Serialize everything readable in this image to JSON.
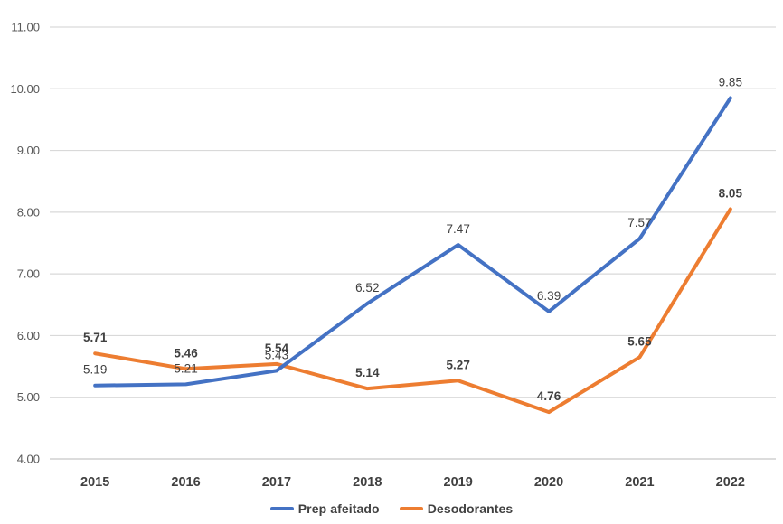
{
  "chart_data": {
    "type": "line",
    "title": "",
    "categories": [
      "2015",
      "2016",
      "2017",
      "2018",
      "2019",
      "2020",
      "2021",
      "2022"
    ],
    "series": [
      {
        "name": "Prep afeitado",
        "color": "#4472C4",
        "values": [
          5.19,
          5.21,
          5.43,
          6.52,
          7.47,
          6.39,
          7.57,
          9.85
        ],
        "labels_bold": false
      },
      {
        "name": "Desodorantes",
        "color": "#ED7D31",
        "values": [
          5.71,
          5.46,
          5.54,
          5.14,
          5.27,
          4.76,
          5.65,
          8.05
        ],
        "labels_bold": true
      }
    ],
    "data_labels": {
      "prep_afeitado": [
        "5.19",
        "5.21",
        "5.43",
        "6.52",
        "7.47",
        "6.39",
        "7.57",
        "9.85"
      ],
      "desodorantes": [
        "5.71",
        "5.46",
        "5.54",
        "5.14",
        "5.27",
        "4.76",
        "5.65",
        "8.05"
      ]
    },
    "xlabel": "",
    "ylabel": "",
    "y_axis": {
      "min": 4,
      "max": 11,
      "step": 1,
      "tick_labels": [
        "4.00",
        "5.00",
        "6.00",
        "7.00",
        "8.00",
        "9.00",
        "10.00",
        "11.00"
      ]
    },
    "grid": true,
    "legend_position": "bottom",
    "colors": {
      "gridline": "#D9D9D9",
      "axis_line": "#C6C6C6",
      "y_tick_text": "#595959",
      "x_tick_text": "#404040",
      "data_label_text": "#404040",
      "background": "#FFFFFF"
    }
  }
}
